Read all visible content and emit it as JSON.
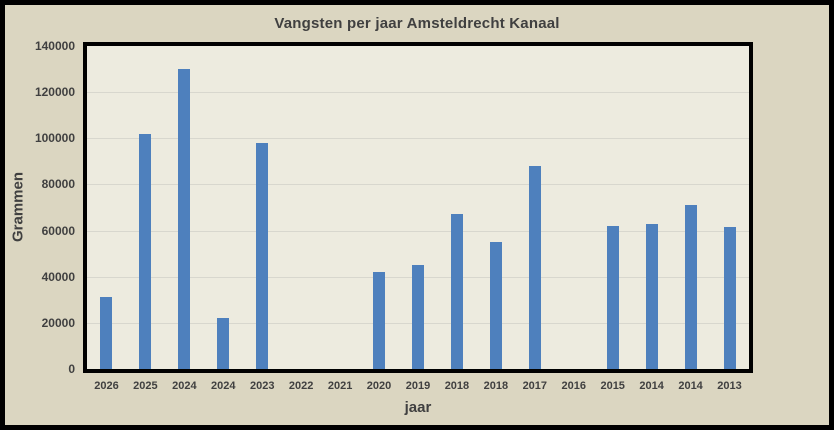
{
  "chart_data": {
    "type": "bar",
    "title": "Vangsten per jaar Amsteldrecht Kanaal",
    "xlabel": "jaar",
    "ylabel": "Grammen",
    "categories": [
      "2026",
      "2025",
      "2024",
      "2024",
      "2023",
      "2022",
      "2021",
      "2020",
      "2019",
      "2018",
      "2018",
      "2017",
      "2016",
      "2015",
      "2014",
      "2014",
      "2013"
    ],
    "values": [
      31000,
      102000,
      130000,
      22000,
      98000,
      0,
      0,
      42000,
      45000,
      67000,
      55000,
      88000,
      0,
      62000,
      63000,
      71000,
      61500
    ],
    "ylim": [
      0,
      140000
    ],
    "ytick_step": 20000,
    "yticks": [
      0,
      20000,
      40000,
      60000,
      80000,
      100000,
      120000,
      140000
    ],
    "grid": true,
    "legend": false,
    "colors": {
      "bar": "#4e80bd",
      "plot_background": "#edebdf",
      "chart_background": "#dbd6c1",
      "gridline": "#d8d7ce",
      "text": "#404040",
      "border": "#000000"
    }
  }
}
